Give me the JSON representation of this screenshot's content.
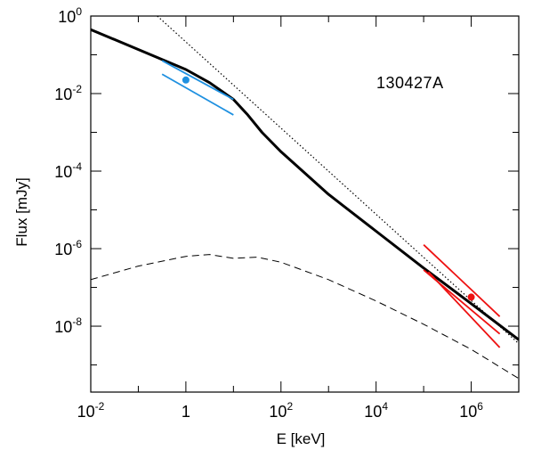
{
  "chart_data": {
    "type": "line",
    "xlabel": "E [keV]",
    "ylabel": "Flux [mJy]",
    "annotation": "130427A",
    "xscale": "log",
    "yscale": "log",
    "xlim_log10": [
      -2,
      7
    ],
    "ylim_log10": [
      -9.7,
      0
    ],
    "x_ticks": [
      {
        "base": "10",
        "exp": "-2",
        "log10": -2
      },
      {
        "base": "1",
        "exp": "",
        "log10": 0
      },
      {
        "base": "10",
        "exp": "2",
        "log10": 2
      },
      {
        "base": "10",
        "exp": "4",
        "log10": 4
      },
      {
        "base": "10",
        "exp": "6",
        "log10": 6
      }
    ],
    "y_ticks": [
      {
        "base": "10",
        "exp": "0",
        "log10": 0
      },
      {
        "base": "10",
        "exp": "-2",
        "log10": -2
      },
      {
        "base": "10",
        "exp": "-4",
        "log10": -4
      },
      {
        "base": "10",
        "exp": "-6",
        "log10": -6
      },
      {
        "base": "10",
        "exp": "-8",
        "log10": -8
      }
    ],
    "grid": false,
    "series": [
      {
        "style": "solid-thick",
        "color": "#000000",
        "points_log10": [
          [
            -2,
            -0.35
          ],
          [
            0,
            -1.38
          ],
          [
            0.5,
            -1.72
          ],
          [
            1,
            -2.15
          ],
          [
            1.3,
            -2.55
          ],
          [
            1.6,
            -3.0
          ],
          [
            2,
            -3.5
          ],
          [
            3,
            -4.6
          ],
          [
            4,
            -5.55
          ],
          [
            5,
            -6.5
          ],
          [
            6,
            -7.42
          ],
          [
            7,
            -8.35
          ]
        ]
      },
      {
        "style": "dotted",
        "color": "#000000",
        "points_log10": [
          [
            -0.6,
            0.0
          ],
          [
            7,
            -8.45
          ]
        ]
      },
      {
        "style": "dashed",
        "color": "#000000",
        "points_log10": [
          [
            -2,
            -6.8
          ],
          [
            -1,
            -6.45
          ],
          [
            0,
            -6.2
          ],
          [
            0.5,
            -6.15
          ],
          [
            1,
            -6.25
          ],
          [
            1.5,
            -6.22
          ],
          [
            2,
            -6.35
          ],
          [
            3,
            -6.8
          ],
          [
            4,
            -7.35
          ],
          [
            5,
            -7.95
          ],
          [
            6,
            -8.6
          ],
          [
            7,
            -9.35
          ]
        ]
      }
    ],
    "data_points": [
      {
        "color": "#1e90e0",
        "x_log10": 0,
        "y_log10": -1.65,
        "slope_lines_log10": [
          [
            [
              -0.5,
              -1.15
            ],
            [
              1,
              -2.15
            ]
          ],
          [
            [
              -0.5,
              -1.5
            ],
            [
              1,
              -2.55
            ]
          ]
        ]
      },
      {
        "color": "#ee1111",
        "x_log10": 6,
        "y_log10": -7.25,
        "slope_lines_log10": [
          [
            [
              5,
              -5.9
            ],
            [
              6.6,
              -7.75
            ]
          ],
          [
            [
              5,
              -6.55
            ],
            [
              6.6,
              -8.2
            ]
          ],
          [
            [
              5.1,
              -6.6
            ],
            [
              6.6,
              -8.55
            ]
          ]
        ]
      }
    ]
  }
}
